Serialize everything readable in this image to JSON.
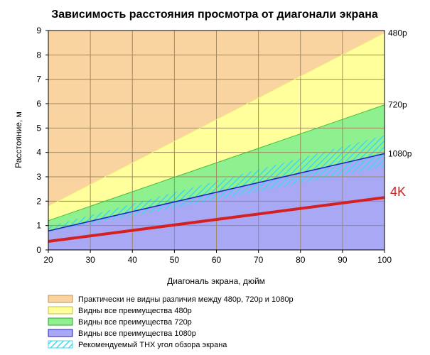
{
  "chart_data": {
    "type": "area",
    "title": "Зависимость расстояния просмотра от диагонали экрана",
    "xlabel": "Диагональ экрана, дюйм",
    "ylabel": "Расстояние, м",
    "xlim": [
      20,
      100
    ],
    "ylim": [
      0,
      9
    ],
    "x_ticks": [
      20,
      30,
      40,
      50,
      60,
      70,
      80,
      90,
      100
    ],
    "y_ticks": [
      0,
      1,
      2,
      3,
      4,
      5,
      6,
      7,
      8,
      9
    ],
    "grid": true,
    "x": [
      20,
      100
    ],
    "lines": [
      {
        "id": "480p",
        "label": "480p",
        "y": [
          1.8,
          8.9
        ],
        "color": "#f5f07a"
      },
      {
        "id": "720p",
        "label": "720p",
        "y": [
          1.2,
          5.95
        ],
        "color": "#40c040"
      },
      {
        "id": "1080p",
        "label": "1080p",
        "y": [
          0.78,
          3.95
        ],
        "color": "#2020c0"
      },
      {
        "id": "4k",
        "label": "4K",
        "y": [
          0.35,
          2.15
        ],
        "color": "#d42020"
      }
    ],
    "thx_band": {
      "y_low": [
        0.72,
        3.4
      ],
      "y_high": [
        0.95,
        4.7
      ],
      "color": "#40d8f0"
    },
    "legend_position": "bottom",
    "legend": [
      {
        "label": "Практически не видны различия между 480p, 720p и 1080p",
        "fill": "#f9d3a0",
        "stroke": "#c09050",
        "hatch": false
      },
      {
        "label": "Видны все преимущества 480p",
        "fill": "#ffff9c",
        "stroke": "#c0c040",
        "hatch": false
      },
      {
        "label": "Видны все преимущества 720p",
        "fill": "#8ef08e",
        "stroke": "#30a030",
        "hatch": false
      },
      {
        "label": "Видны все преимущества 1080p",
        "fill": "#a8a8f4",
        "stroke": "#2020c0",
        "hatch": false
      },
      {
        "label": "Рекомендуемый THX угол обзора экрана",
        "fill": "#ffffff",
        "stroke": "#40d8f0",
        "hatch": true
      }
    ],
    "colors": {
      "area_top": "#f9d3a0",
      "area_480": "#ffff9c",
      "area_720": "#8ef08e",
      "area_1080": "#a8a8f4",
      "grid": "#a08a60"
    }
  }
}
